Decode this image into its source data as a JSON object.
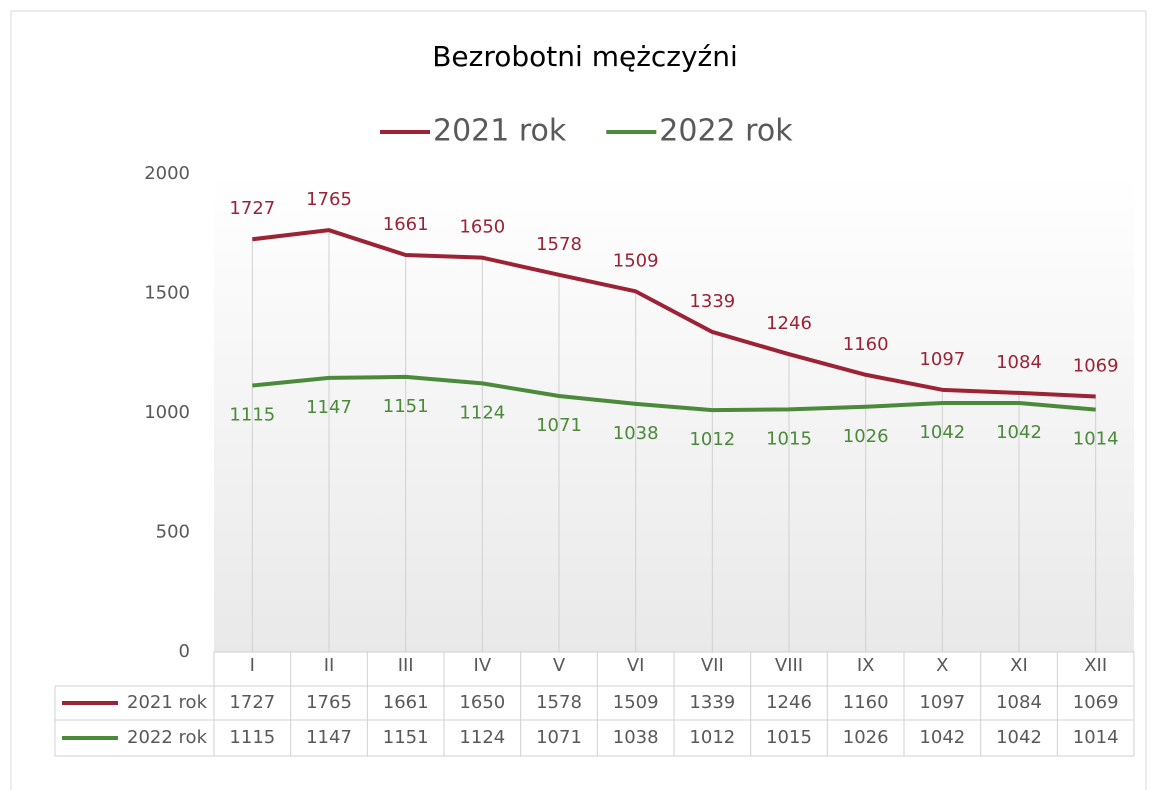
{
  "chart_data": {
    "type": "line",
    "title": "Bezrobotni mężczyźni",
    "categories": [
      "I",
      "II",
      "III",
      "IV",
      "V",
      "VI",
      "VII",
      "VIII",
      "IX",
      "X",
      "XI",
      "XII"
    ],
    "series": [
      {
        "name": "2021 rok",
        "color": "#9b2335",
        "values": [
          1727,
          1765,
          1661,
          1650,
          1578,
          1509,
          1339,
          1246,
          1160,
          1097,
          1084,
          1069
        ]
      },
      {
        "name": "2022 rok",
        "color": "#4a8a3a",
        "values": [
          1115,
          1147,
          1151,
          1124,
          1071,
          1038,
          1012,
          1015,
          1026,
          1042,
          1042,
          1014
        ]
      }
    ],
    "ylim": [
      0,
      2000
    ],
    "yticks": [
      0,
      500,
      1000,
      1500,
      2000
    ],
    "legend": "top",
    "data_table": true
  }
}
